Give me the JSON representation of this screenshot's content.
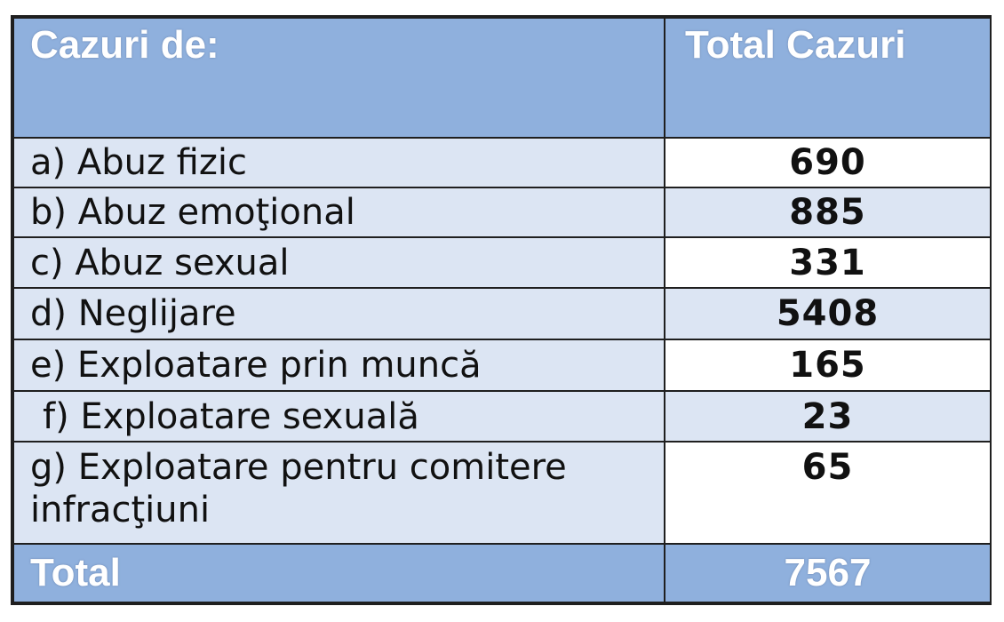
{
  "table": {
    "header": {
      "category_label": "Cazuri de:",
      "total_label": "Total Cazuri"
    },
    "rows": [
      {
        "label": "a) Abuz  fizic",
        "value": "690"
      },
      {
        "label": "b) Abuz emoţional",
        "value": "885"
      },
      {
        "label": "c) Abuz sexual",
        "value": "331"
      },
      {
        "label": "d) Neglijare",
        "value": "5408"
      },
      {
        "label": "e) Exploatare prin muncă",
        "value": "165"
      },
      {
        "label": "f) Exploatare sexuală",
        "value": "23"
      },
      {
        "label": "g) Exploatare pentru comitere infracţiuni",
        "value": "65"
      }
    ],
    "total": {
      "label": "Total",
      "value": "7567"
    }
  },
  "colors": {
    "header_bg": "#8fb0dd",
    "band_bg": "#dce5f3",
    "border": "#1f1f1f"
  }
}
